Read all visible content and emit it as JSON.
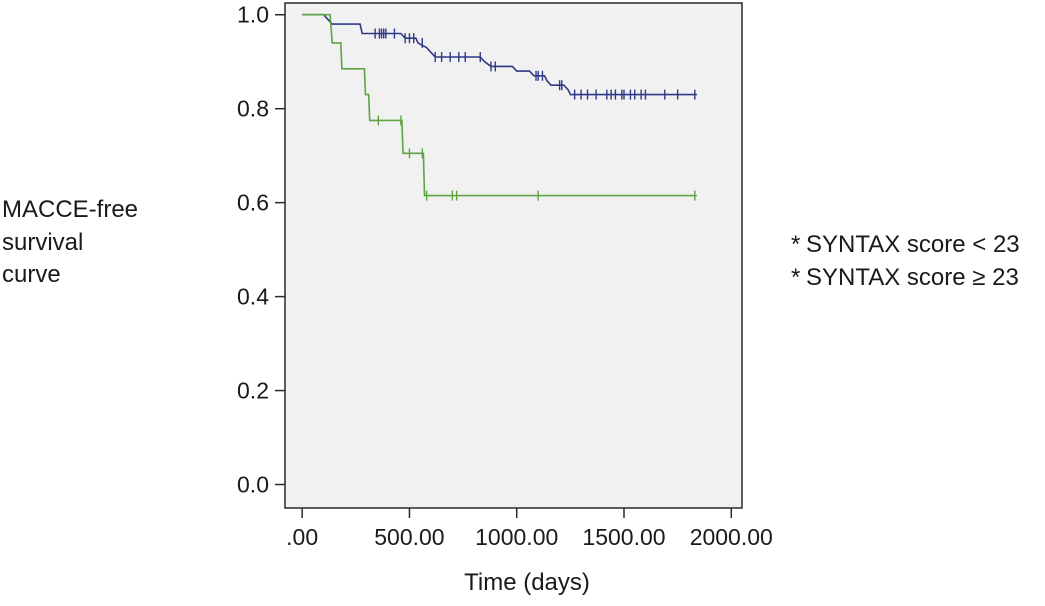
{
  "chart_data": {
    "type": "line",
    "step": true,
    "title": "",
    "xlabel": "Time (days)",
    "ylabel_lines": [
      "MACCE-free",
      "survival",
      "curve"
    ],
    "xlim": [
      -80,
      2050
    ],
    "ylim": [
      -0.05,
      1.025
    ],
    "x_ticks": [
      0,
      500,
      1000,
      1500,
      2000
    ],
    "x_tick_labels": [
      ".00",
      "500.00",
      "1000.00",
      "1500.00",
      "2000.00"
    ],
    "y_ticks": [
      0.0,
      0.2,
      0.4,
      0.6,
      0.8,
      1.0
    ],
    "y_tick_labels": [
      "0.0",
      "0.2",
      "0.4",
      "0.6",
      "0.8",
      "1.0"
    ],
    "plot_background": "#f1f1f1",
    "grid": false,
    "legend_position": "right",
    "series": [
      {
        "name": "SYNTAX score < 23",
        "marker": "*",
        "color": "#2e3a87",
        "points": [
          [
            0,
            1.0
          ],
          [
            100,
            1.0
          ],
          [
            120,
            0.99
          ],
          [
            140,
            0.98
          ],
          [
            270,
            0.98
          ],
          [
            280,
            0.96
          ],
          [
            460,
            0.96
          ],
          [
            480,
            0.95
          ],
          [
            530,
            0.95
          ],
          [
            540,
            0.94
          ],
          [
            580,
            0.93
          ],
          [
            600,
            0.92
          ],
          [
            620,
            0.91
          ],
          [
            830,
            0.91
          ],
          [
            850,
            0.9
          ],
          [
            880,
            0.89
          ],
          [
            980,
            0.89
          ],
          [
            1000,
            0.88
          ],
          [
            1060,
            0.88
          ],
          [
            1080,
            0.87
          ],
          [
            1130,
            0.87
          ],
          [
            1140,
            0.86
          ],
          [
            1160,
            0.85
          ],
          [
            1220,
            0.85
          ],
          [
            1240,
            0.84
          ],
          [
            1250,
            0.83
          ],
          [
            1840,
            0.83
          ]
        ],
        "censored_x": [
          340,
          360,
          370,
          380,
          390,
          430,
          480,
          500,
          520,
          560,
          620,
          650,
          690,
          730,
          760,
          830,
          880,
          900,
          1090,
          1100,
          1120,
          1200,
          1210,
          1270,
          1300,
          1330,
          1370,
          1420,
          1440,
          1460,
          1490,
          1500,
          1530,
          1550,
          1580,
          1600,
          1690,
          1750,
          1830
        ]
      },
      {
        "name": "SYNTAX score ≥ 23",
        "marker": "*",
        "color": "#5da444",
        "points": [
          [
            0,
            1.0
          ],
          [
            130,
            1.0
          ],
          [
            140,
            0.94
          ],
          [
            180,
            0.94
          ],
          [
            185,
            0.885
          ],
          [
            290,
            0.885
          ],
          [
            295,
            0.83
          ],
          [
            310,
            0.83
          ],
          [
            315,
            0.775
          ],
          [
            465,
            0.775
          ],
          [
            470,
            0.705
          ],
          [
            565,
            0.705
          ],
          [
            570,
            0.615
          ],
          [
            1840,
            0.615
          ]
        ],
        "censored_x": [
          355,
          460,
          500,
          560,
          580,
          700,
          720,
          1100,
          1830
        ]
      }
    ]
  }
}
